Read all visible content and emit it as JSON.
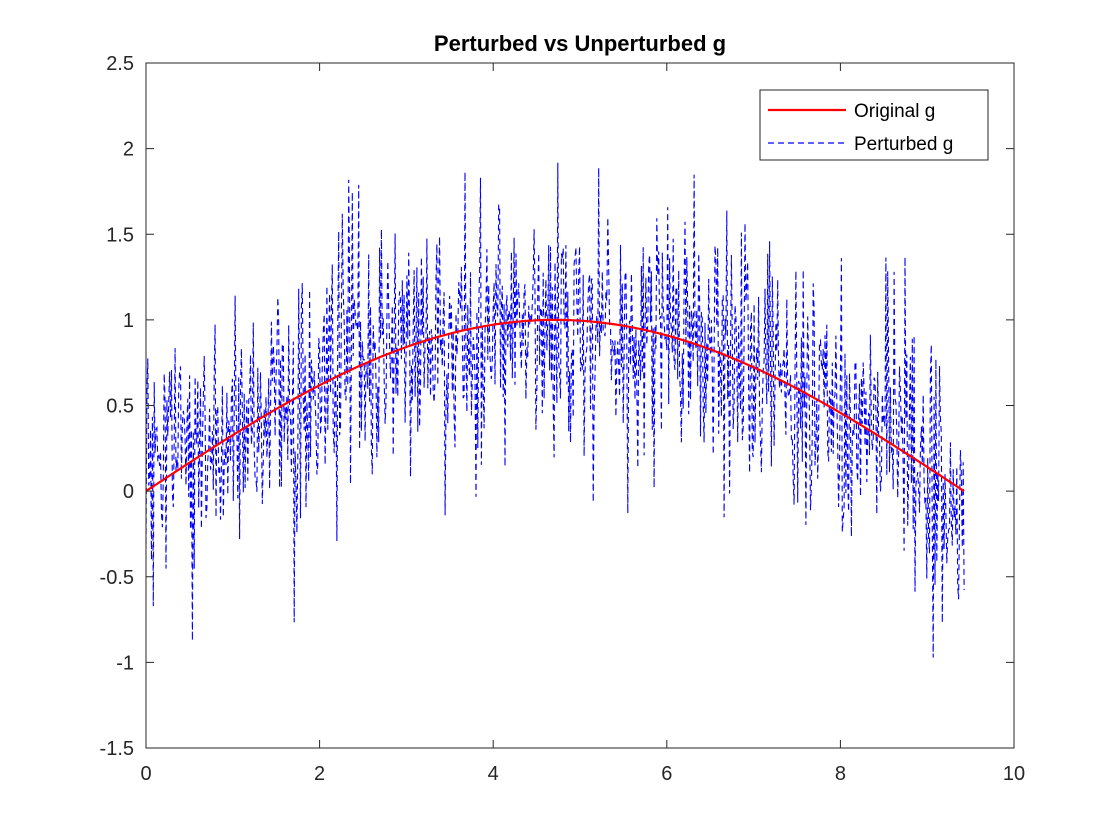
{
  "chart_data": {
    "type": "line",
    "title": "Perturbed vs Unperturbed g",
    "xlabel": "",
    "ylabel": "",
    "xlim": [
      0,
      10
    ],
    "ylim": [
      -1.5,
      2.5
    ],
    "x_ticks": [
      "0",
      "2",
      "4",
      "6",
      "8",
      "10"
    ],
    "y_ticks": [
      "-1.5",
      "-1",
      "-0.5",
      "0",
      "0.5",
      "1",
      "1.5",
      "2",
      "2.5"
    ],
    "grid": false,
    "legend_position": "top-right",
    "x_start": 0,
    "x_end": 9.4248,
    "series": [
      {
        "name": "Original g",
        "style": "solid",
        "color": "#ff0000",
        "function": "sin(x/3)"
      },
      {
        "name": "Perturbed g",
        "style": "dashed",
        "color": "#0000ff",
        "description": "Original g plus random noise, roughly within ±1 of the curve"
      }
    ]
  }
}
